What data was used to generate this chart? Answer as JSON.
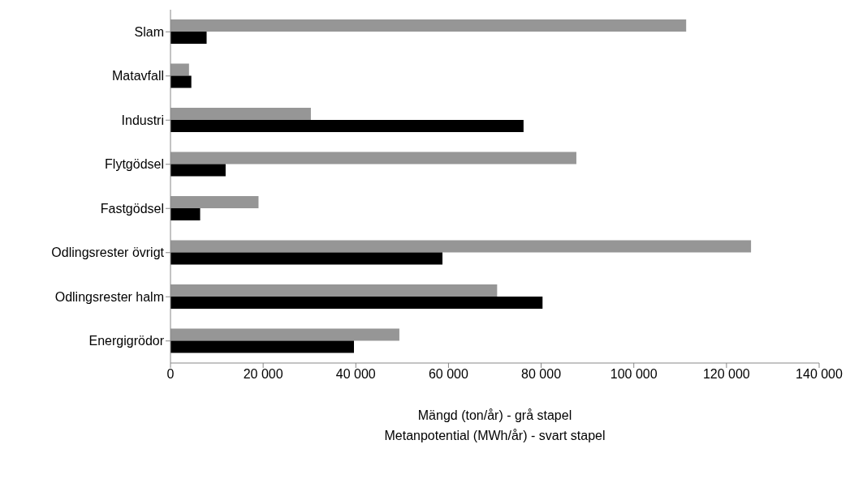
{
  "chart_data": {
    "type": "bar",
    "orientation": "horizontal",
    "categories": [
      "Slam",
      "Matavfall",
      "Industri",
      "Flytgödsel",
      "Fastgödsel",
      "Odlingsrester övrigt",
      "Odlingsrester halm",
      "Energigrödor"
    ],
    "series": [
      {
        "color": "#969696",
        "values": [
          111300,
          4000,
          30300,
          87600,
          19000,
          125300,
          70500,
          49400
        ]
      },
      {
        "color": "#000000",
        "values": [
          7800,
          4500,
          76200,
          11900,
          6400,
          58700,
          80300,
          39600
        ]
      }
    ],
    "xlim": [
      0,
      140000
    ],
    "xticks": [
      0,
      {
        "value": 20000,
        "label": "20 000"
      },
      {
        "value": 40000,
        "label": "40 000"
      },
      {
        "value": 60000,
        "label": "60 000"
      },
      {
        "value": 80000,
        "label": "80 000"
      },
      {
        "value": 100000,
        "label": "100 000"
      },
      {
        "value": 120000,
        "label": "120 000"
      },
      {
        "value": 140000,
        "label": "140 000"
      }
    ],
    "xlabel": "Mängd (ton/år) - grå stapel\nMetanpotential (MWh/år) - svart stapel"
  }
}
